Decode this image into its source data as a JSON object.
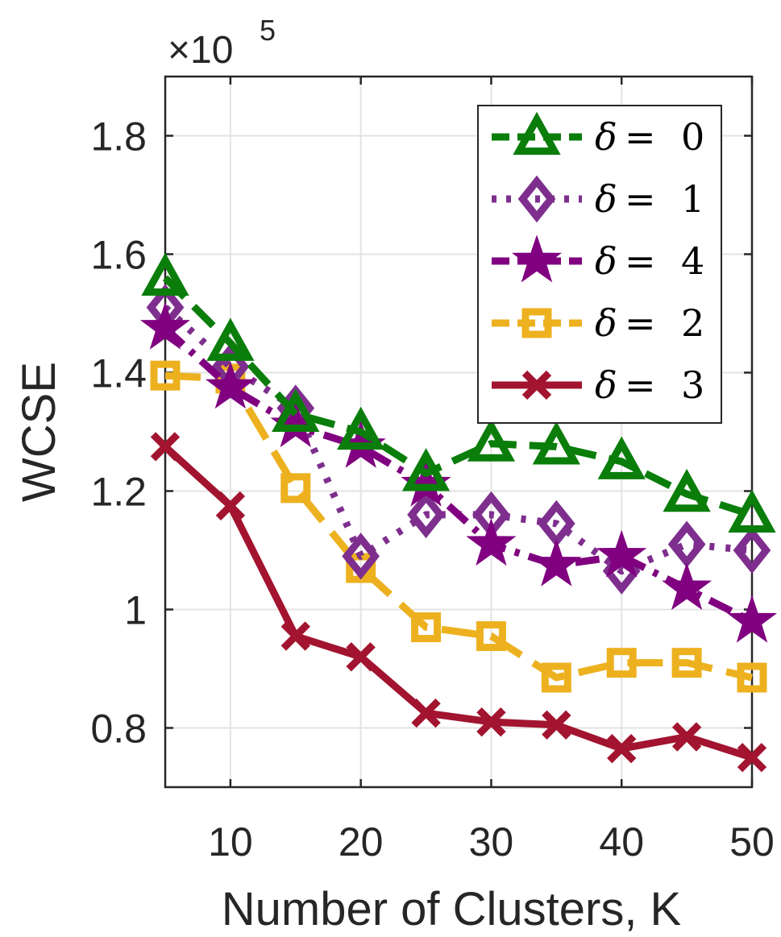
{
  "chart_data": {
    "type": "line",
    "title": "",
    "xlabel": "Number of Clusters, K",
    "ylabel": "WCSE",
    "y_multiplier_label": "×10",
    "y_multiplier_exponent": "5",
    "xlim": [
      5,
      50
    ],
    "ylim": [
      0.7,
      1.9
    ],
    "xticks": [
      10,
      20,
      30,
      40,
      50
    ],
    "xtick_labels": [
      "10",
      "20",
      "30",
      "40",
      "50"
    ],
    "yticks": [
      0.8,
      1.0,
      1.2,
      1.4,
      1.6,
      1.8
    ],
    "ytick_labels": [
      "0.8",
      "1",
      "1.2",
      "1.4",
      "1.6",
      "1.8"
    ],
    "grid": true,
    "legend_position": "top-right",
    "x": [
      5,
      10,
      15,
      20,
      25,
      30,
      35,
      40,
      45,
      50
    ],
    "series": [
      {
        "name": "δ = 0",
        "symbol": "δ",
        "equals": "=",
        "value": "0",
        "color": "#0a7d0a",
        "marker": "triangle",
        "dash": "dashed",
        "values": [
          1.56,
          1.45,
          1.33,
          1.3,
          1.23,
          1.28,
          1.275,
          1.25,
          1.195,
          1.16
        ]
      },
      {
        "name": "δ = 1",
        "symbol": "δ",
        "equals": "=",
        "value": "1",
        "color": "#7e2f8e",
        "marker": "diamond",
        "dash": "dotted",
        "values": [
          1.51,
          1.41,
          1.34,
          1.09,
          1.16,
          1.16,
          1.145,
          1.065,
          1.11,
          1.1
        ]
      },
      {
        "name": "δ = 4",
        "symbol": "δ",
        "equals": "=",
        "value": "4",
        "color": "#800080",
        "marker": "star",
        "dash": "dashdot",
        "values": [
          1.475,
          1.375,
          1.31,
          1.275,
          1.21,
          1.11,
          1.075,
          1.09,
          1.035,
          0.98
        ]
      },
      {
        "name": "δ = 2",
        "symbol": "δ",
        "equals": "=",
        "value": "2",
        "color": "#edb120",
        "marker": "square",
        "dash": "longdash",
        "values": [
          1.395,
          1.39,
          1.205,
          1.07,
          0.97,
          0.955,
          0.885,
          0.91,
          0.91,
          0.885
        ]
      },
      {
        "name": "δ = 3",
        "symbol": "δ",
        "equals": "=",
        "value": "3",
        "color": "#a2142f",
        "marker": "x",
        "dash": "solid",
        "values": [
          1.275,
          1.175,
          0.955,
          0.92,
          0.825,
          0.81,
          0.805,
          0.765,
          0.785,
          0.75
        ]
      }
    ]
  }
}
